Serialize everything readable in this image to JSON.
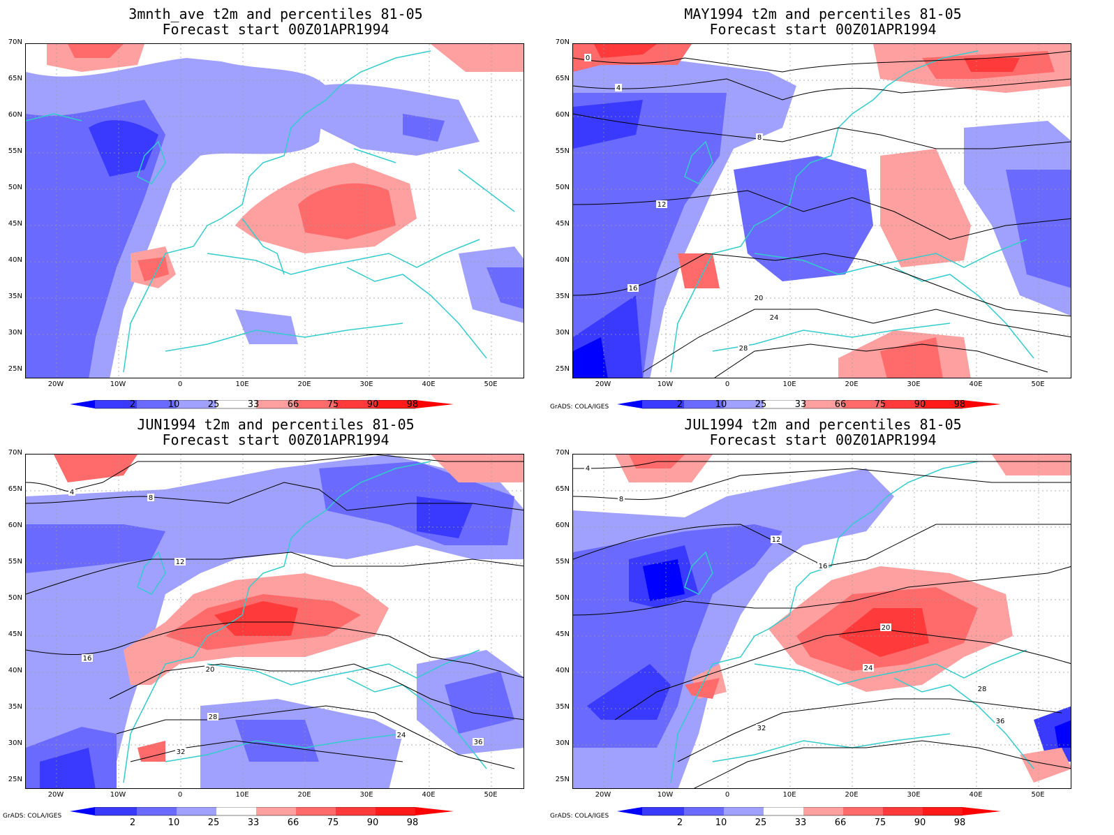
{
  "panels": [
    {
      "title_line1": "3mnth_ave t2m and percentiles 81-05",
      "title_line2": "Forecast start 00Z01APR1994",
      "credit": ""
    },
    {
      "title_line1": "MAY1994 t2m and percentiles 81-05",
      "title_line2": "Forecast start 00Z01APR1994",
      "credit": "GrADS: COLA/IGES"
    },
    {
      "title_line1": "JUN1994 t2m and percentiles 81-05",
      "title_line2": "Forecast start 00Z01APR1994",
      "credit": "GrADS: COLA/IGES"
    },
    {
      "title_line1": "JUL1994 t2m and percentiles 81-05",
      "title_line2": "Forecast start 00Z01APR1994",
      "credit": "GrADS: COLA/IGES"
    }
  ],
  "lat_labels": [
    "70N",
    "65N",
    "60N",
    "55N",
    "50N",
    "45N",
    "40N",
    "35N",
    "30N",
    "25N"
  ],
  "lon_labels": [
    "20W",
    "10W",
    "0",
    "10E",
    "20E",
    "30E",
    "40E",
    "50E"
  ],
  "colorbar": {
    "labels": [
      "2",
      "10",
      "25",
      "33",
      "66",
      "75",
      "90",
      "98"
    ],
    "colors": [
      "#0000ff",
      "#3a3aff",
      "#6a6aff",
      "#a0a0ff",
      "#ffffff",
      "#ffa0a0",
      "#ff6a6a",
      "#ff3a3a",
      "#ff0000"
    ]
  },
  "map_colors": {
    "coast": "#33cccc",
    "contour": "#000000",
    "grid": "#999999"
  },
  "contour_labels": {
    "panel2": [
      "0",
      "4",
      "8",
      "12",
      "16",
      "20",
      "24",
      "28"
    ],
    "panel3": [
      "4",
      "8",
      "12",
      "16",
      "20",
      "24",
      "28",
      "32",
      "36"
    ],
    "panel4": [
      "4",
      "8",
      "12",
      "16",
      "20",
      "24",
      "28",
      "32",
      "36"
    ]
  }
}
